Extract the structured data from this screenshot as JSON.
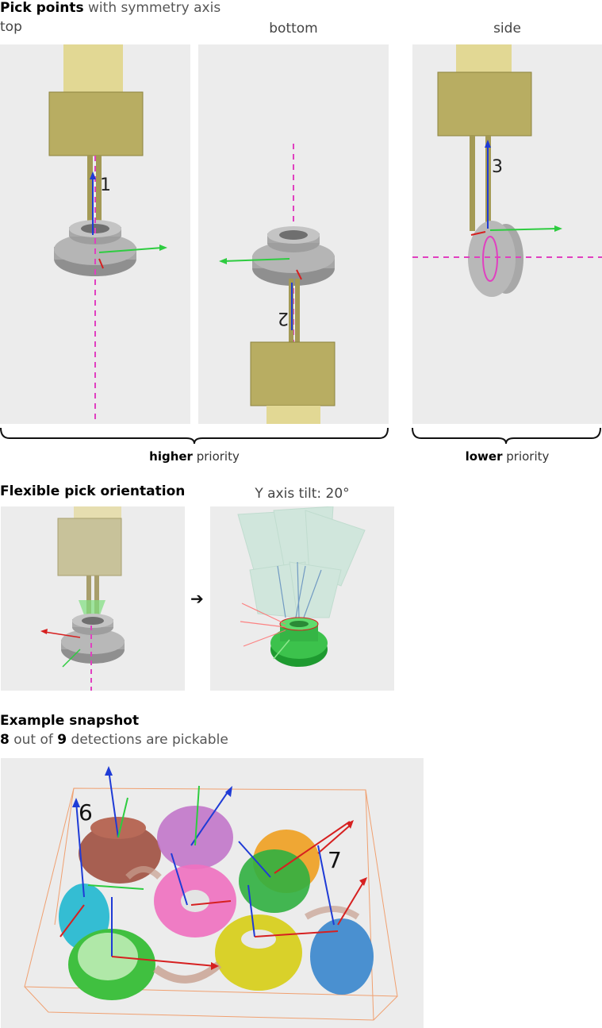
{
  "section1": {
    "title_bold": "Pick points",
    "title_rest": " with symmetry axis",
    "views": [
      "top",
      "bottom",
      "side"
    ],
    "pick_labels": [
      "1",
      "2",
      "3"
    ],
    "brackets": [
      {
        "bold": "higher",
        "rest": " priority"
      },
      {
        "bold": "lower",
        "rest": " priority"
      }
    ]
  },
  "section2": {
    "title": "Flexible pick orientation",
    "tilt_label": "Y axis tilt: 20°",
    "arrow": "➔"
  },
  "section3": {
    "title": "Example snapshot",
    "count_a": "8",
    "count_mid": " out of ",
    "count_b": "9",
    "count_rest": " detections are pickable",
    "labels": [
      "6",
      "7"
    ]
  },
  "colors": {
    "panel_bg": "#ececec",
    "gripper": "#c2ba68",
    "gripper_top": "#e8df98",
    "part": "#9a9a9a",
    "axis_magenta": "#e040c0",
    "arrow_green": "#2ecc40",
    "arrow_blue": "#1f3bd6",
    "arrow_red": "#d62020"
  }
}
